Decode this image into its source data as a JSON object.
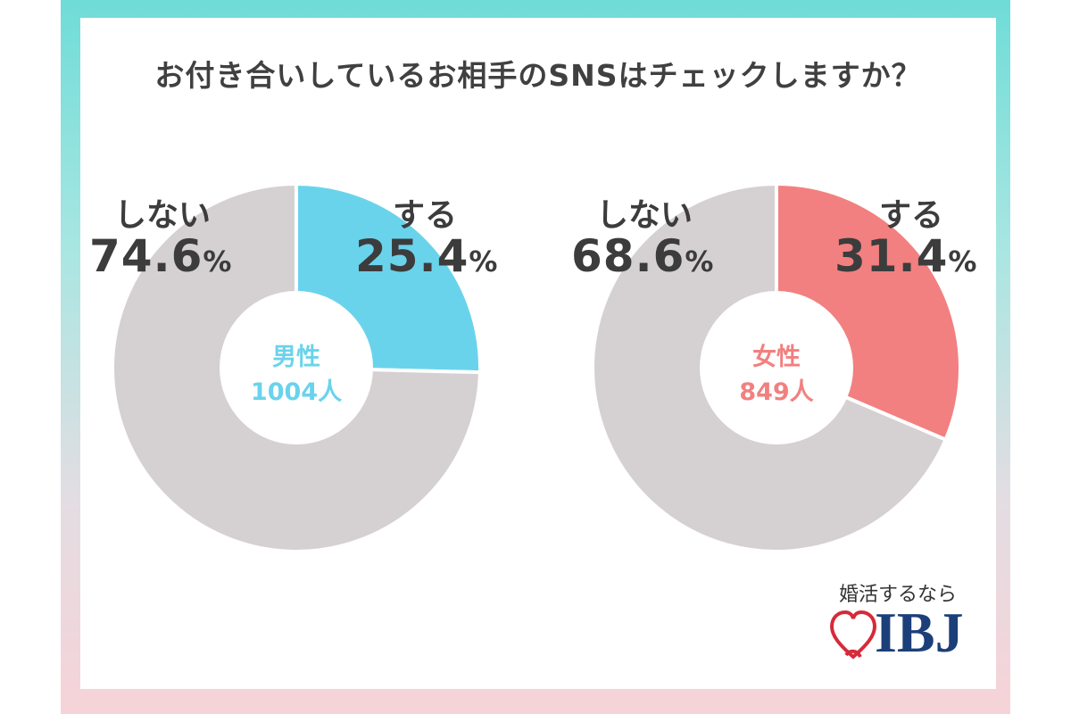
{
  "title": "お付き合いしているお相手のSNSはチェックしますか？",
  "colors": {
    "male_accent": "#6ad3ec",
    "female_accent": "#f28080",
    "no_color": "#d5d1d2",
    "text": "#3c3c3c",
    "logo_blue": "#1c3f7a",
    "logo_red": "#d62a3a"
  },
  "chart_data": [
    {
      "type": "pie",
      "group": "男性",
      "count": "1004人",
      "categories": [
        "する",
        "しない"
      ],
      "values": [
        25.4,
        74.6
      ],
      "labels": {
        "yes_label": "する",
        "yes_value": "25.4",
        "yes_unit": "%",
        "no_label": "しない",
        "no_value": "74.6",
        "no_unit": "%"
      }
    },
    {
      "type": "pie",
      "group": "女性",
      "count": "849人",
      "categories": [
        "する",
        "しない"
      ],
      "values": [
        31.4,
        68.6
      ],
      "labels": {
        "yes_label": "する",
        "yes_value": "31.4",
        "yes_unit": "%",
        "no_label": "しない",
        "no_value": "68.6",
        "no_unit": "%"
      }
    }
  ],
  "logo": {
    "tagline": "婚活するなら",
    "brand": "IBJ",
    "icon": "heart-ribbon-icon"
  }
}
